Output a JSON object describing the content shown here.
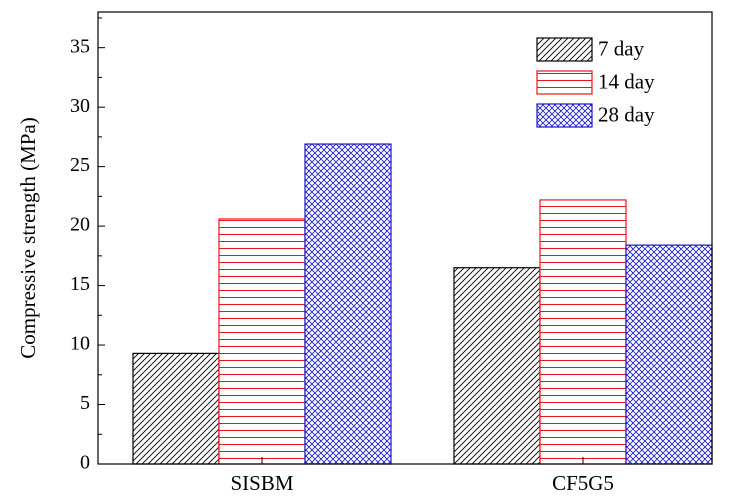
{
  "chart_data": {
    "type": "bar",
    "title": "",
    "xlabel": "",
    "ylabel": "Compressive strength (MPa)",
    "ylim": [
      0,
      38
    ],
    "yticks": [
      0,
      5,
      10,
      15,
      20,
      25,
      30,
      35
    ],
    "categories": [
      "SISBM",
      "CF5G5"
    ],
    "series": [
      {
        "name": "7 day",
        "values": [
          9.3,
          16.5
        ],
        "color": "#000000",
        "pattern": "diagonal-hatch"
      },
      {
        "name": "14 day",
        "values": [
          20.6,
          22.2
        ],
        "color": "#e8141b",
        "pattern": "horizontal-lines"
      },
      {
        "name": "28 day",
        "values": [
          26.9,
          18.4
        ],
        "color": "#1515cc",
        "pattern": "crosshatch"
      }
    ],
    "legend_position": "top-right",
    "grid": false
  }
}
